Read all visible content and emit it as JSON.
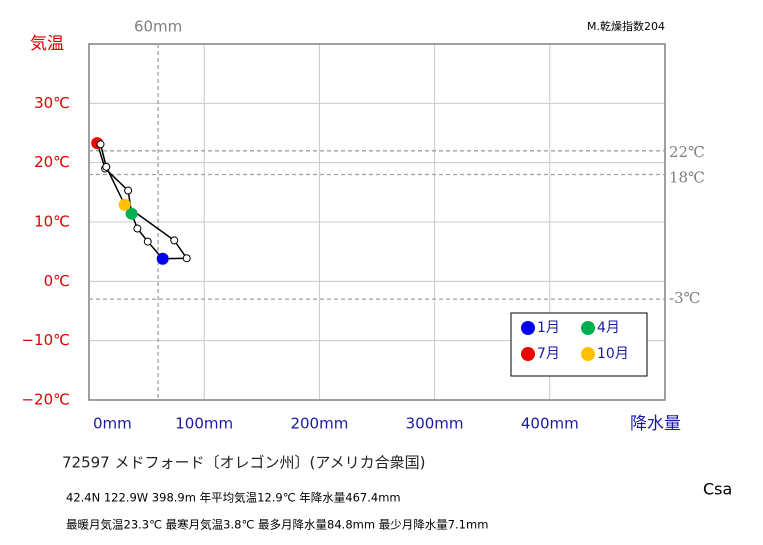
{
  "chart_data": {
    "type": "climograph",
    "index_label": "M.乾燥指数204",
    "ylabel": "気温",
    "xlabel": "降水量",
    "x": [
      64,
      51,
      42,
      37,
      34,
      14,
      7.1,
      10,
      15,
      31,
      74,
      84.8
    ],
    "y": [
      3.8,
      6.7,
      8.9,
      11.4,
      15.3,
      19.0,
      23.3,
      23.1,
      19.3,
      12.9,
      6.9,
      3.9
    ],
    "point_colors": [
      "#0000ee",
      "#ffffff",
      "#ffffff",
      "#00b050",
      "#ffffff",
      "#ffffff",
      "#ee0000",
      "#ffffff",
      "#ffffff",
      "#ffc000",
      "#ffffff",
      "#ffffff"
    ],
    "line_color": "#000000",
    "xlim": [
      0,
      500
    ],
    "xticks": [
      {
        "value": 0,
        "label": "0mm"
      },
      {
        "value": 100,
        "label": "100mm"
      },
      {
        "value": 200,
        "label": "200mm"
      },
      {
        "value": 300,
        "label": "300mm"
      },
      {
        "value": 400,
        "label": "400mm"
      }
    ],
    "ylim": [
      -20,
      40
    ],
    "yticks": [
      {
        "value": -20,
        "label": "−20℃"
      },
      {
        "value": -10,
        "label": "−10℃"
      },
      {
        "value": 0,
        "label": "0℃"
      },
      {
        "value": 10,
        "label": "10℃"
      },
      {
        "value": 20,
        "label": "20℃"
      },
      {
        "value": 30,
        "label": "30℃"
      }
    ],
    "grid": true,
    "vlines": [
      {
        "value": 60,
        "label": "60mm"
      }
    ],
    "hlines": [
      {
        "value": 22,
        "label": "22℃"
      },
      {
        "value": 18,
        "label": "18℃"
      },
      {
        "value": -3,
        "label": "-3℃"
      }
    ],
    "legend": [
      {
        "label": "1月",
        "color": "#0000ee"
      },
      {
        "label": "4月",
        "color": "#00b050"
      },
      {
        "label": "7月",
        "color": "#ee0000"
      },
      {
        "label": "10月",
        "color": "#ffc000"
      }
    ]
  },
  "info": {
    "station": "72597  メドフォード〔オレゴン州〕(アメリカ合衆国)",
    "line1": "42.4N  122.9W  398.9m  年平均気温12.9℃ 年降水量467.4mm",
    "line2": "最暖月気温23.3℃ 最寒月気温3.8℃ 最多月降水量84.8mm 最少月降水量7.1mm",
    "climate": "Csa"
  }
}
